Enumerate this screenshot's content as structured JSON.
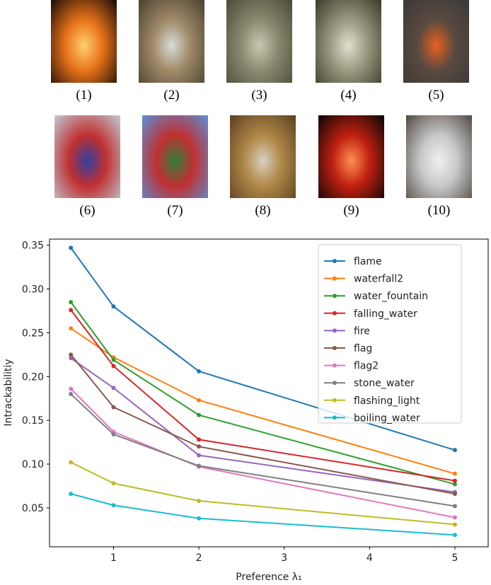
{
  "figures": [
    {
      "caption": "(1)",
      "colors": [
        "#1a0a05",
        "#e8731a",
        "#ffd070"
      ]
    },
    {
      "caption": "(2)",
      "colors": [
        "#4a4030",
        "#a08a68",
        "#d8dcd8"
      ]
    },
    {
      "caption": "(3)",
      "colors": [
        "#4a4a38",
        "#8a8a70",
        "#c8c8b0"
      ]
    },
    {
      "caption": "(4)",
      "colors": [
        "#3a3a28",
        "#9a9a80",
        "#e0e0d0"
      ]
    },
    {
      "caption": "(5)",
      "colors": [
        "#3a3838",
        "#5a4a40",
        "#e86020"
      ]
    },
    {
      "caption": "(6)",
      "colors": [
        "#c0ccd8",
        "#c03030",
        "#3040a0"
      ]
    },
    {
      "caption": "(7)",
      "colors": [
        "#5a90d8",
        "#c03030",
        "#30803a"
      ]
    },
    {
      "caption": "(8)",
      "colors": [
        "#5a4020",
        "#b08848",
        "#d8d0c0"
      ]
    },
    {
      "caption": "(9)",
      "colors": [
        "#050505",
        "#c02010",
        "#ff9050"
      ]
    },
    {
      "caption": "(10)",
      "colors": [
        "#504840",
        "#c8c8c8",
        "#f0f0f0"
      ]
    }
  ],
  "chart_data": {
    "type": "line",
    "title": "",
    "xlabel": "Preference λ₁",
    "ylabel": "Intrackabilitiy",
    "x": [
      0.5,
      1,
      2,
      5
    ],
    "xlim": [
      0.25,
      5.39
    ],
    "ylim": [
      0.0055,
      0.357
    ],
    "xticks": [
      1,
      2,
      3,
      4,
      5
    ],
    "yticks": [
      0.05,
      0.1,
      0.15,
      0.2,
      0.25,
      0.3,
      0.35
    ],
    "ytick_labels": [
      "0.05",
      "0.10",
      "0.15",
      "0.20",
      "0.25",
      "0.30",
      "0.35"
    ],
    "grid": false,
    "legend_position": "top-right",
    "series": [
      {
        "name": "flame",
        "color": "#1f77b4",
        "values": [
          0.347,
          0.28,
          0.206,
          0.116
        ]
      },
      {
        "name": "waterfall2",
        "color": "#ff7f0e",
        "values": [
          0.255,
          0.222,
          0.173,
          0.089
        ]
      },
      {
        "name": "water_fountain",
        "color": "#2ca02c",
        "values": [
          0.285,
          0.219,
          0.156,
          0.077
        ]
      },
      {
        "name": "falling_water",
        "color": "#d62728",
        "values": [
          0.276,
          0.212,
          0.128,
          0.081
        ]
      },
      {
        "name": "fire",
        "color": "#9467bd",
        "values": [
          0.221,
          0.187,
          0.11,
          0.068
        ]
      },
      {
        "name": "flag",
        "color": "#8c564b",
        "values": [
          0.225,
          0.165,
          0.12,
          0.066
        ]
      },
      {
        "name": "flag2",
        "color": "#e377c2",
        "values": [
          0.186,
          0.137,
          0.097,
          0.039
        ]
      },
      {
        "name": "stone_water",
        "color": "#7f7f7f",
        "values": [
          0.18,
          0.134,
          0.098,
          0.052
        ]
      },
      {
        "name": "flashing_light",
        "color": "#bcbd22",
        "values": [
          0.102,
          0.078,
          0.058,
          0.031
        ]
      },
      {
        "name": "boiling_water",
        "color": "#17becf",
        "values": [
          0.066,
          0.053,
          0.038,
          0.019
        ]
      }
    ]
  }
}
